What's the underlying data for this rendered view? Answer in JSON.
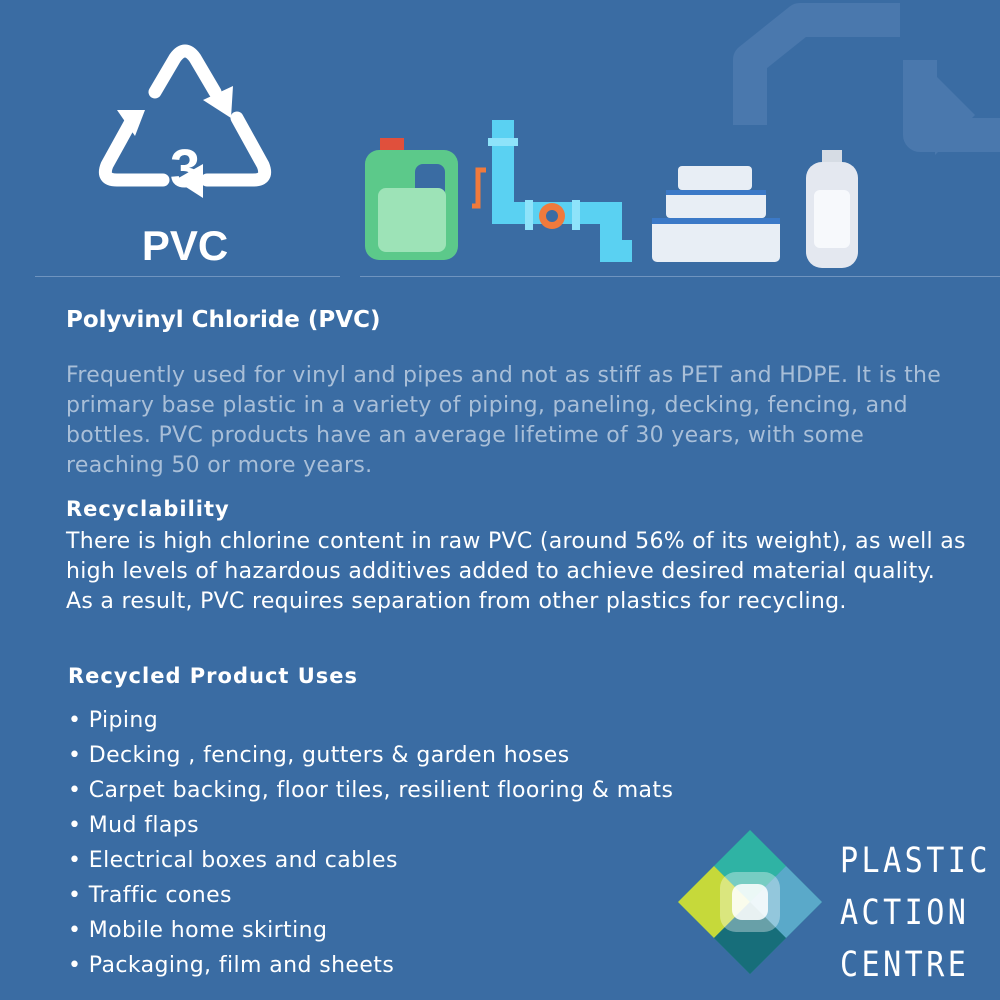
{
  "resin": {
    "number": "3",
    "code": "PVC"
  },
  "product_icons": [
    "detergent-jug-icon",
    "pipe-valve-icon",
    "stacked-containers-icon",
    "plastic-bottle-icon"
  ],
  "title": "Polyvinyl Chloride (PVC)",
  "description": "Frequently used for vinyl and pipes and not as stiff as PET and HDPE. It is the primary base plastic in a variety of piping, paneling, decking, fencing, and bottles. PVC products have an average lifetime of 30 years, with some reaching 50 or more years.",
  "recyclability": {
    "heading": "Recyclability",
    "body": "There is high chlorine content in raw PVC (around 56% of its weight), as well as high levels of hazardous additives added to achieve desired material quality. As a result, PVC requires separation from other plastics for recycling."
  },
  "uses": {
    "heading": "Recycled Product Uses",
    "items": [
      "Piping",
      "Decking , fencing, gutters & garden hoses",
      "Carpet backing, floor tiles, resilient flooring & mats",
      "Mud flaps",
      "Electrical boxes and cables",
      "Traffic cones",
      "Mobile home skirting",
      "Packaging, film and sheets"
    ]
  },
  "brand": {
    "line1": "PLASTIC",
    "line2": "ACTION",
    "line3": "CENTRE"
  },
  "colors": {
    "background": "#3a6ca3",
    "description_text": "#a9bfd8",
    "jug_green": "#5cc98a",
    "pipe_blue": "#5ad1f2",
    "valve_orange": "#f07a3c"
  }
}
